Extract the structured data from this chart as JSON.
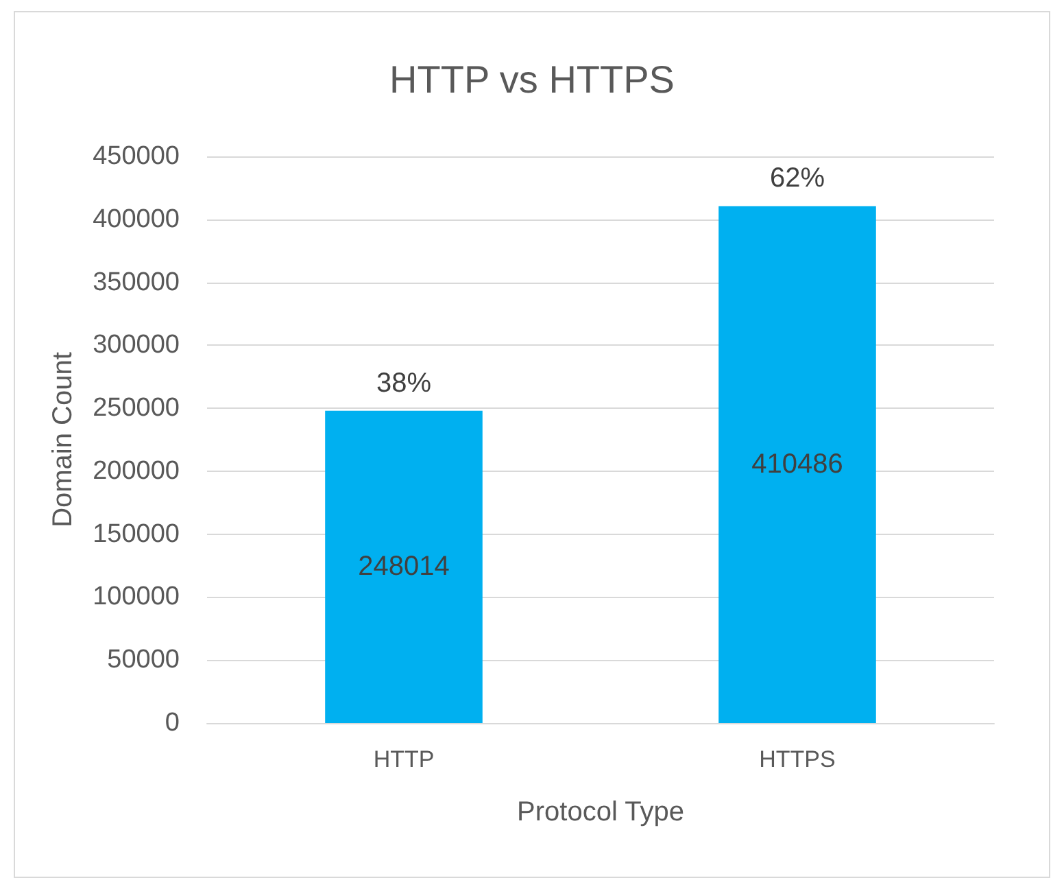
{
  "chart_data": {
    "type": "bar",
    "title": "HTTP vs HTTPS",
    "xlabel": "Protocol Type",
    "ylabel": "Domain Count",
    "categories": [
      "HTTP",
      "HTTPS"
    ],
    "stacked": true,
    "series": [
      {
        "color": "#00b0f0",
        "values": [
          248014,
          410486
        ],
        "value_labels": [
          "248014",
          "410486"
        ]
      },
      {
        "color": "#ed7d31",
        "values": [
          38,
          62
        ],
        "value_labels": [
          "38%",
          "62%"
        ]
      }
    ],
    "ylim": [
      0,
      450000
    ],
    "yticks": [
      0,
      50000,
      100000,
      150000,
      200000,
      250000,
      300000,
      350000,
      400000,
      450000
    ],
    "grid": "y"
  }
}
